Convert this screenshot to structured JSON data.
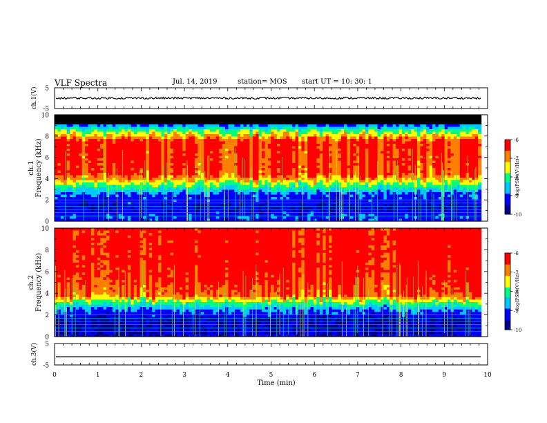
{
  "header": {
    "title": "VLF Spectra",
    "date": "Jul. 14, 2019",
    "station": "station= MOS",
    "start_ut": "start UT = 10: 30: 1"
  },
  "colors": {
    "spectrogram": [
      "#00008c",
      "#0000ff",
      "#00c8ff",
      "#00ff80",
      "#ffff00",
      "#ff8000",
      "#ff0000",
      "#ffffff"
    ],
    "saturated_band": "#000000",
    "trace": "#000000"
  },
  "chart_data": [
    {
      "type": "line",
      "name": "ch1-waveform",
      "ylabel": "ch.1(V)",
      "xlim": [
        0,
        10
      ],
      "ylim": [
        -5,
        5
      ],
      "yticks": [
        "5",
        "-5"
      ],
      "series_level": 0
    },
    {
      "type": "heatmap",
      "name": "ch1-spectrogram",
      "ylabel": "ch.1\nFrequency (kHz)",
      "ylabel_lines": [
        "ch.1",
        "Frequency (kHz)"
      ],
      "xlim": [
        0,
        9.85
      ],
      "ylim": [
        0,
        10
      ],
      "yticks": [
        "0",
        "2",
        "4",
        "6",
        "8",
        "10"
      ],
      "colorbar": {
        "label": "log(PSD)(V²/Hz)",
        "range": [
          -10,
          -6
        ],
        "ticks": [
          "-6",
          "-7",
          "-8",
          "-9",
          "-10"
        ]
      },
      "profile_kHz": [
        {
          "f": 0.0,
          "level": 0.2
        },
        {
          "f": 0.4,
          "level": 0.25
        },
        {
          "f": 1.2,
          "level": 0.15
        },
        {
          "f": 2.5,
          "level": 0.25
        },
        {
          "f": 3.3,
          "level": 0.5
        },
        {
          "f": 4.0,
          "level": 0.75
        },
        {
          "f": 4.5,
          "level": 0.9
        },
        {
          "f": 7.5,
          "level": 0.93
        },
        {
          "f": 8.0,
          "level": 0.7
        },
        {
          "f": 8.6,
          "level": 0.5
        },
        {
          "f": 8.9,
          "level": 0.3
        },
        {
          "f": 9.1,
          "level": -1
        },
        {
          "f": 10.0,
          "level": -1
        }
      ],
      "saturated_above_kHz": 9.1
    },
    {
      "type": "heatmap",
      "name": "ch2-spectrogram",
      "ylabel": "ch.2\nFrequency (kHz)",
      "ylabel_lines": [
        "ch.2",
        "Frequency (kHz)"
      ],
      "xlim": [
        0,
        9.85
      ],
      "ylim": [
        0,
        10
      ],
      "yticks": [
        "0",
        "2",
        "4",
        "6",
        "8",
        "10"
      ],
      "colorbar": {
        "label": "log(PSD)(V²/Hz)",
        "range": [
          -10,
          -6
        ],
        "ticks": [
          "-6",
          "-7",
          "-8",
          "-9",
          "-10"
        ]
      },
      "profile_kHz": [
        {
          "f": 0.0,
          "level": 0.15
        },
        {
          "f": 1.5,
          "level": 0.12
        },
        {
          "f": 2.5,
          "level": 0.3
        },
        {
          "f": 3.2,
          "level": 0.55
        },
        {
          "f": 3.8,
          "level": 0.85
        },
        {
          "f": 5.5,
          "level": 0.95
        },
        {
          "f": 7.0,
          "level": 0.98
        },
        {
          "f": 10.0,
          "level": 0.99
        }
      ]
    },
    {
      "type": "line",
      "name": "ch3-waveform",
      "ylabel": "ch.3(V)",
      "xlim": [
        0,
        10
      ],
      "ylim": [
        -5,
        5
      ],
      "yticks": [
        "5",
        "-5"
      ],
      "series_level": -1.2
    }
  ],
  "x_axis": {
    "xlabel": "Time (min)",
    "ticks": [
      "0",
      "1",
      "2",
      "3",
      "4",
      "5",
      "6",
      "7",
      "8",
      "9",
      "10"
    ],
    "range": [
      0,
      10
    ]
  }
}
